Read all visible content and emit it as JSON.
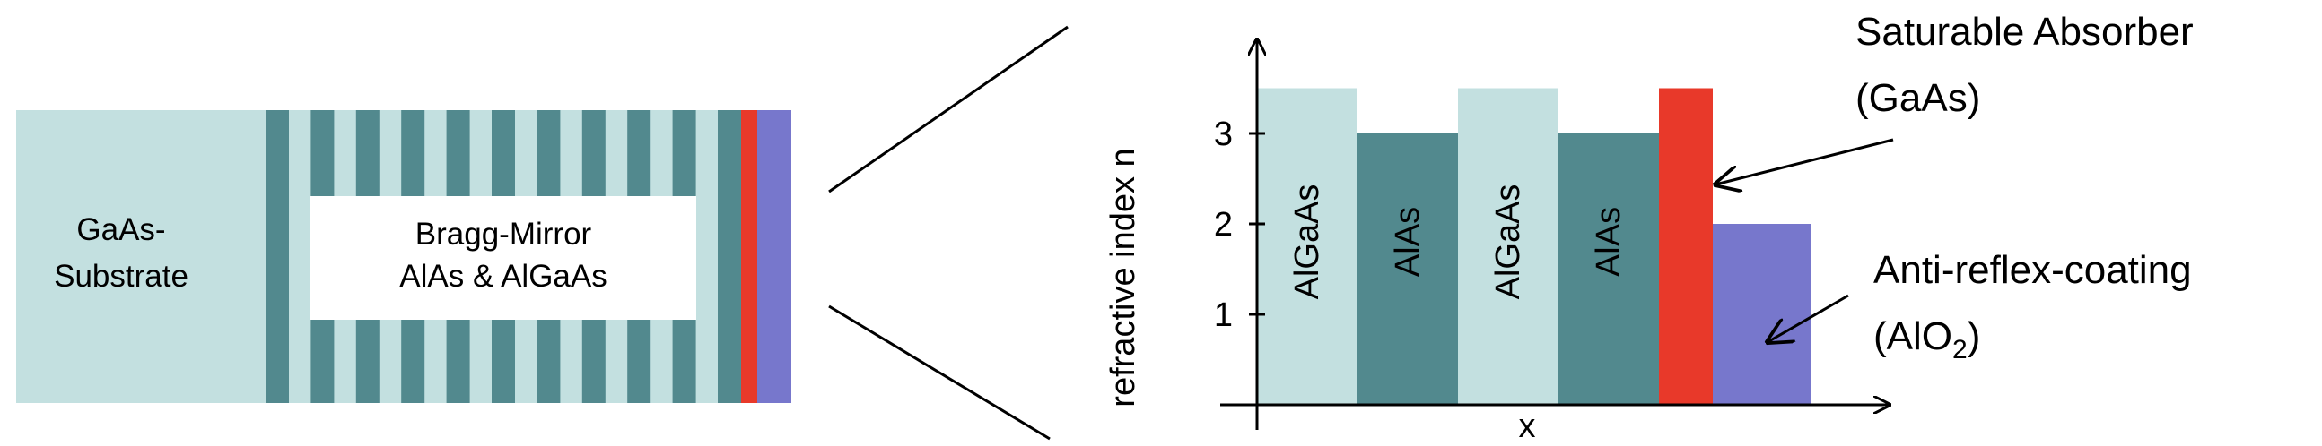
{
  "colors": {
    "light_teal": "#C3E0E0",
    "dark_teal": "#52898E",
    "red": "#E8392A",
    "purple": "#7777CC",
    "white": "#FFFFFF",
    "black": "#000000"
  },
  "left_panel": {
    "substrate_label_line1": "GaAs-",
    "substrate_label_line2": "Substrate",
    "mirror_label_line1": "Bragg-Mirror",
    "mirror_label_line2": "AlAs & AlGaAs",
    "bragg_pairs": 11
  },
  "chart": {
    "y_axis_label": "refractive index n",
    "x_axis_label": "x",
    "y_ticks": [
      "1",
      "2",
      "3"
    ],
    "layers": [
      {
        "label": "AlGaAs",
        "n": 3.5,
        "color": "light_teal"
      },
      {
        "label": "AlAs",
        "n": 3.0,
        "color": "dark_teal"
      },
      {
        "label": "AlGaAs",
        "n": 3.5,
        "color": "light_teal"
      },
      {
        "label": "AlAs",
        "n": 3.0,
        "color": "dark_teal"
      },
      {
        "label": "",
        "n": 3.5,
        "color": "red"
      },
      {
        "label": "",
        "n": 2.0,
        "color": "purple"
      }
    ]
  },
  "annotations": {
    "saturable_line1": "Saturable Absorber",
    "saturable_line2": "(GaAs)",
    "antireflex_line1": "Anti-reflex-coating",
    "antireflex_line2_main": "(AlO",
    "antireflex_line2_sub": "2",
    "antireflex_line2_end": ")"
  }
}
